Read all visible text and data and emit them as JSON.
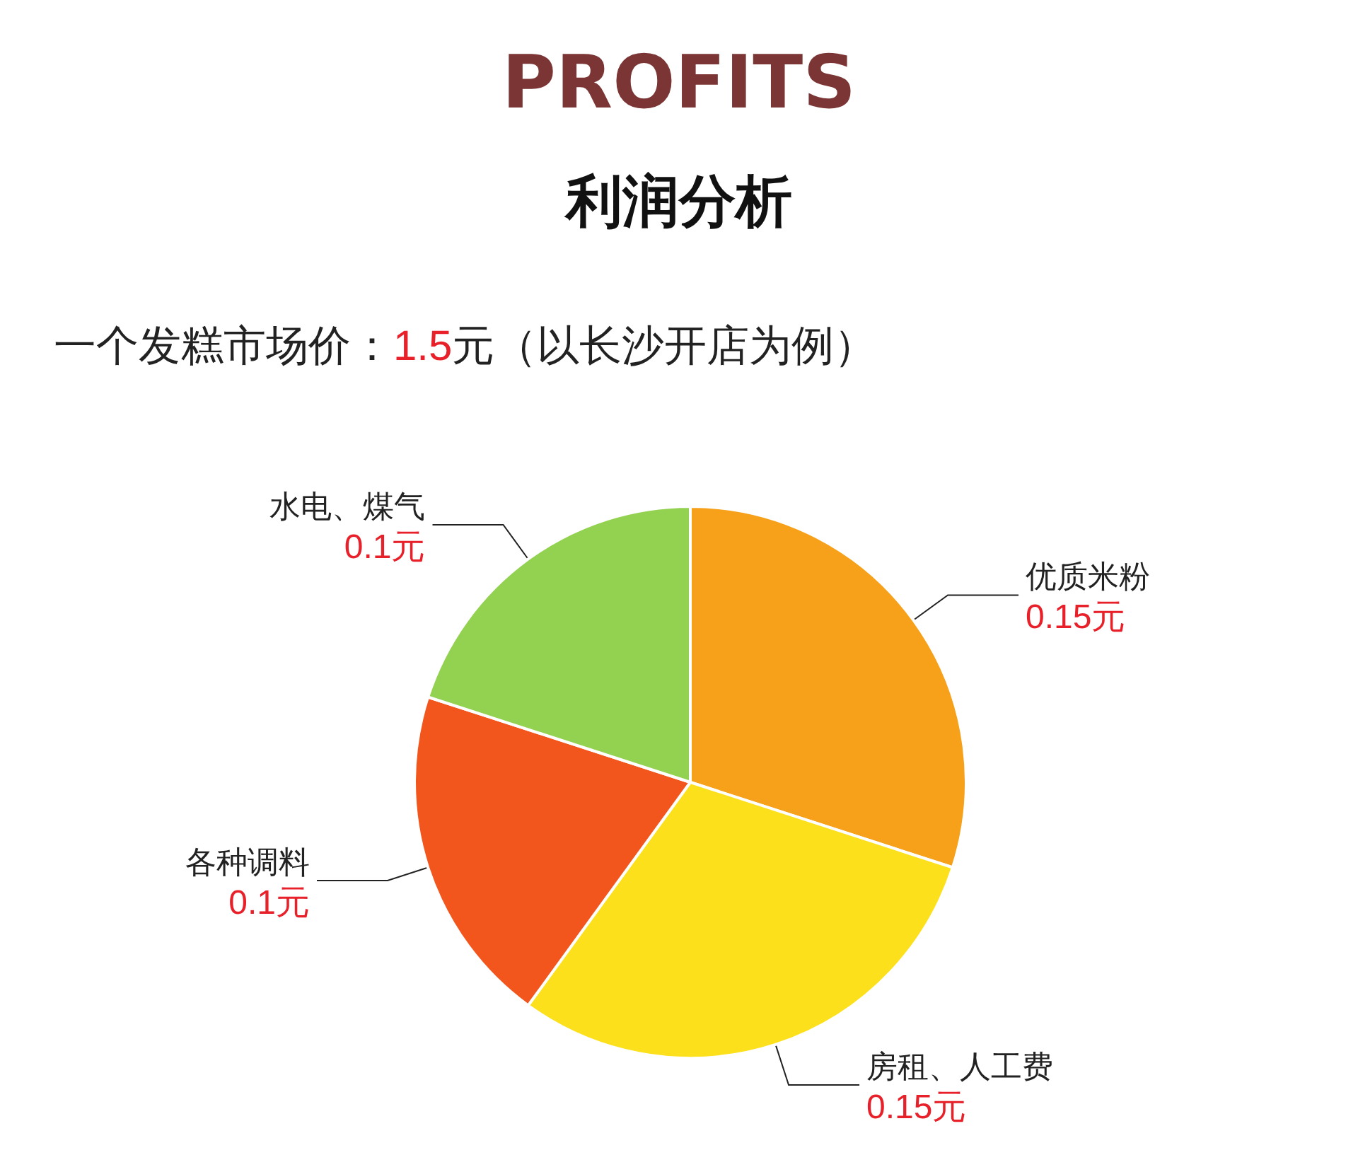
{
  "chart_data": {
    "type": "pie",
    "title": "PROFITS",
    "subtitle": "利润分析",
    "annotations": [
      "一个发糕市场价：1.5元（以长沙开店为例）"
    ],
    "categories": [
      "优质米粉",
      "房租、人工费",
      "各种调料",
      "水电、煤气"
    ],
    "values": [
      0.15,
      0.15,
      0.1,
      0.1
    ],
    "value_labels": [
      "0.15元",
      "0.15元",
      "0.1元",
      "0.1元"
    ],
    "colors": [
      "#f7a01a",
      "#fce01b",
      "#f2561d",
      "#93d151"
    ],
    "legend": false
  }
}
